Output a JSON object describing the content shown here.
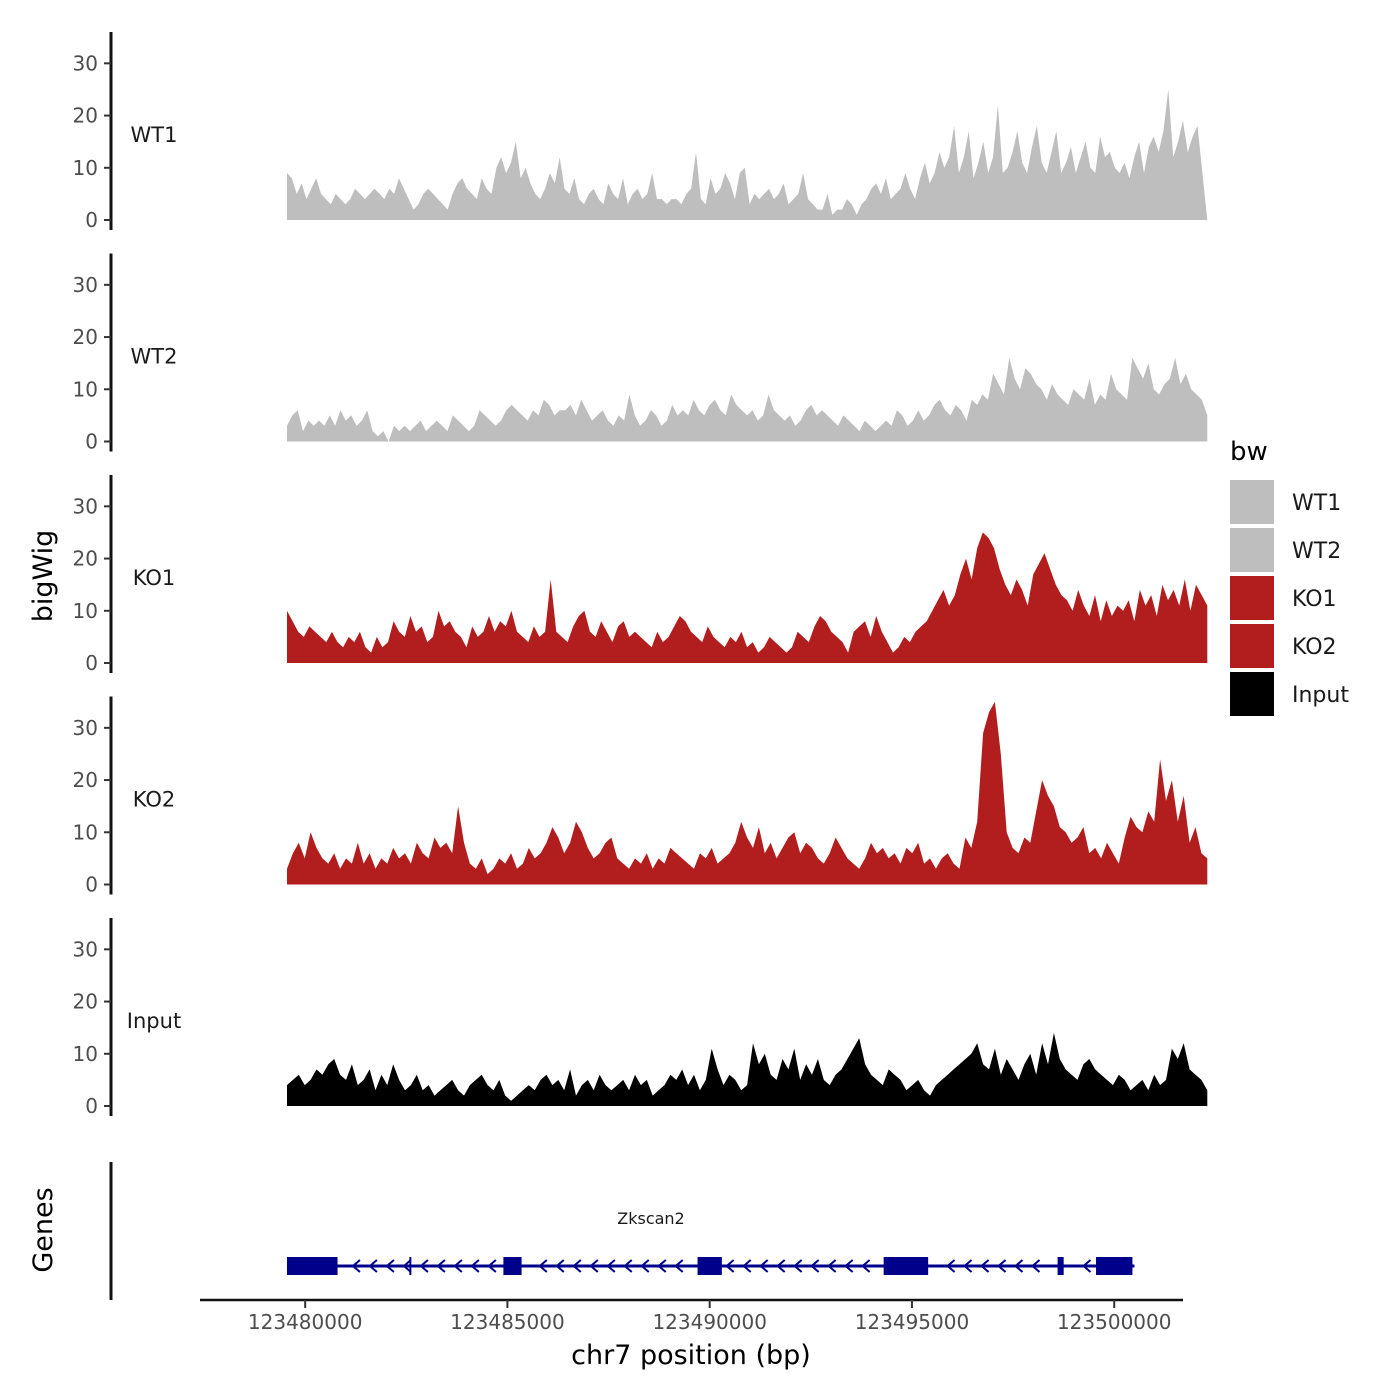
{
  "chart_data": {
    "type": "area",
    "ylabel": "bigWig",
    "xlabel": "chr7 position (bp)",
    "xlim": [
      123477400,
      123501700
    ],
    "ylim": [
      0,
      36
    ],
    "y_ticks": [
      "0",
      "10",
      "20",
      "30"
    ],
    "x_ticks": [
      {
        "value": 123480000,
        "label": "123480000"
      },
      {
        "value": 123485000,
        "label": "123485000"
      },
      {
        "value": 123490000,
        "label": "123490000"
      },
      {
        "value": 123495000,
        "label": "123495000"
      },
      {
        "value": 123500000,
        "label": "123500000"
      }
    ],
    "signal_range": [
      123479550,
      123502300
    ],
    "series": [
      {
        "name": "WT1",
        "color": "#BEBEBE",
        "values": [
          9,
          8,
          5,
          7,
          4,
          6,
          8,
          5,
          4,
          3,
          5,
          4,
          3,
          4,
          6,
          5,
          4,
          5,
          6,
          5,
          4,
          6,
          5,
          8,
          6,
          4,
          2,
          3,
          5,
          6,
          5,
          4,
          3,
          2,
          5,
          7,
          8,
          6,
          5,
          4,
          8,
          6,
          5,
          10,
          12,
          9,
          11,
          15,
          8,
          10,
          7,
          5,
          4,
          6,
          9,
          7,
          12,
          6,
          5,
          8,
          4,
          3,
          5,
          6,
          4,
          3,
          7,
          5,
          4,
          8,
          3,
          5,
          6,
          4,
          5,
          9,
          4,
          4,
          3,
          4,
          4,
          3,
          5,
          6,
          13,
          4,
          3,
          8,
          5,
          6,
          9,
          7,
          4,
          9,
          10,
          3,
          5,
          4,
          5,
          6,
          4,
          5,
          7,
          3,
          4,
          5,
          9,
          4,
          3,
          2,
          2,
          5,
          1,
          2,
          2,
          4,
          3,
          1,
          3,
          4,
          6,
          7,
          5,
          8,
          4,
          5,
          6,
          9,
          6,
          4,
          8,
          11,
          7,
          9,
          13,
          10,
          12,
          18,
          9,
          12,
          17,
          8,
          11,
          15,
          9,
          12,
          22,
          9,
          10,
          13,
          17,
          11,
          9,
          14,
          18,
          11,
          9,
          13,
          17,
          9,
          11,
          14,
          9,
          12,
          15,
          10,
          9,
          16,
          12,
          13,
          10,
          9,
          11,
          8,
          12,
          15,
          9,
          14,
          16,
          13,
          17,
          25,
          12,
          15,
          19,
          13,
          16,
          18,
          9,
          0
        ]
      },
      {
        "name": "WT2",
        "color": "#BEBEBE",
        "values": [
          3,
          5,
          6,
          2,
          4,
          3,
          4,
          3,
          5,
          3,
          6,
          4,
          5,
          3,
          4,
          6,
          2,
          1,
          2,
          0,
          3,
          2,
          3,
          2,
          3,
          4,
          2,
          3,
          4,
          3,
          2,
          5,
          4,
          3,
          2,
          3,
          6,
          5,
          4,
          3,
          4,
          6,
          7,
          6,
          5,
          4,
          6,
          5,
          8,
          7,
          5,
          6,
          6,
          7,
          5,
          8,
          6,
          4,
          5,
          6,
          4,
          3,
          5,
          4,
          9,
          5,
          3,
          4,
          6,
          5,
          3,
          4,
          7,
          5,
          6,
          5,
          8,
          6,
          5,
          7,
          8,
          6,
          5,
          9,
          7,
          6,
          5,
          6,
          4,
          5,
          9,
          6,
          5,
          4,
          5,
          3,
          4,
          6,
          7,
          5,
          6,
          5,
          4,
          3,
          5,
          4,
          3,
          2,
          4,
          3,
          2,
          3,
          4,
          3,
          6,
          5,
          3,
          4,
          6,
          4,
          5,
          7,
          8,
          6,
          5,
          7,
          6,
          4,
          8,
          7,
          9,
          8,
          13,
          11,
          9,
          16,
          12,
          10,
          14,
          13,
          11,
          10,
          8,
          11,
          9,
          8,
          7,
          10,
          9,
          8,
          12,
          7,
          9,
          8,
          13,
          10,
          9,
          8,
          16,
          14,
          12,
          15,
          10,
          9,
          11,
          12,
          16,
          11,
          13,
          10,
          9,
          8,
          5
        ]
      },
      {
        "name": "KO1",
        "color": "#B21E1E",
        "values": [
          10,
          8,
          6,
          5,
          7,
          6,
          5,
          4,
          6,
          4,
          3,
          5,
          4,
          6,
          3,
          2,
          5,
          3,
          4,
          8,
          6,
          5,
          9,
          6,
          7,
          4,
          5,
          10,
          7,
          8,
          6,
          5,
          3,
          7,
          5,
          6,
          9,
          6,
          8,
          7,
          10,
          6,
          5,
          4,
          7,
          5,
          6,
          16,
          6,
          5,
          4,
          7,
          9,
          10,
          6,
          5,
          8,
          6,
          4,
          7,
          8,
          5,
          6,
          5,
          4,
          3,
          6,
          4,
          5,
          7,
          9,
          8,
          6,
          5,
          4,
          7,
          5,
          4,
          3,
          5,
          4,
          6,
          3,
          4,
          2,
          3,
          5,
          4,
          3,
          2,
          3,
          6,
          5,
          4,
          7,
          9,
          8,
          6,
          5,
          4,
          2,
          6,
          7,
          8,
          5,
          9,
          6,
          4,
          2,
          3,
          5,
          4,
          6,
          7,
          8,
          10,
          12,
          14,
          11,
          13,
          17,
          20,
          16,
          22,
          25,
          24,
          22,
          18,
          15,
          13,
          16,
          14,
          11,
          17,
          19,
          21,
          18,
          15,
          13,
          12,
          10,
          14,
          11,
          9,
          13,
          8,
          12,
          9,
          11,
          10,
          12,
          8,
          14,
          11,
          13,
          9,
          15,
          12,
          14,
          11,
          16,
          10,
          15,
          13,
          11
        ]
      },
      {
        "name": "KO2",
        "color": "#B21E1E",
        "values": [
          3,
          6,
          8,
          5,
          10,
          7,
          5,
          4,
          6,
          3,
          5,
          4,
          8,
          4,
          6,
          3,
          5,
          4,
          7,
          5,
          6,
          4,
          8,
          6,
          5,
          9,
          7,
          8,
          6,
          15,
          8,
          4,
          3,
          5,
          2,
          3,
          5,
          4,
          6,
          3,
          4,
          7,
          5,
          6,
          8,
          11,
          9,
          6,
          8,
          12,
          10,
          7,
          5,
          6,
          8,
          9,
          5,
          4,
          3,
          5,
          4,
          6,
          3,
          5,
          4,
          7,
          6,
          5,
          4,
          3,
          6,
          5,
          7,
          4,
          5,
          6,
          8,
          12,
          9,
          7,
          11,
          6,
          8,
          5,
          7,
          9,
          10,
          6,
          8,
          7,
          5,
          4,
          6,
          9,
          7,
          5,
          4,
          3,
          5,
          8,
          6,
          7,
          5,
          6,
          4,
          7,
          6,
          8,
          4,
          5,
          3,
          5,
          6,
          4,
          3,
          9,
          7,
          12,
          29,
          33,
          35,
          25,
          10,
          7,
          6,
          9,
          8,
          14,
          20,
          17,
          15,
          11,
          10,
          8,
          9,
          11,
          6,
          7,
          5,
          8,
          6,
          4,
          9,
          13,
          11,
          10,
          14,
          12,
          24,
          16,
          20,
          12,
          17,
          8,
          11,
          6,
          5
        ]
      },
      {
        "name": "Input",
        "color": "#000000",
        "values": [
          4,
          5,
          6,
          4,
          5,
          7,
          6,
          8,
          9,
          6,
          5,
          8,
          4,
          5,
          7,
          3,
          6,
          4,
          8,
          5,
          3,
          4,
          6,
          3,
          4,
          2,
          3,
          4,
          5,
          3,
          2,
          4,
          5,
          6,
          4,
          3,
          5,
          2,
          1,
          2,
          3,
          4,
          3,
          5,
          6,
          4,
          5,
          3,
          7,
          2,
          4,
          5,
          3,
          6,
          4,
          3,
          4,
          5,
          3,
          6,
          4,
          5,
          2,
          3,
          4,
          6,
          5,
          7,
          4,
          6,
          3,
          5,
          11,
          7,
          4,
          6,
          5,
          3,
          4,
          12,
          8,
          10,
          6,
          5,
          9,
          7,
          11,
          5,
          8,
          6,
          9,
          5,
          4,
          6,
          7,
          9,
          11,
          13,
          8,
          6,
          5,
          4,
          7,
          6,
          5,
          3,
          4,
          5,
          3,
          2,
          4,
          5,
          6,
          7,
          8,
          9,
          10,
          12,
          8,
          7,
          11,
          6,
          9,
          7,
          5,
          8,
          10,
          6,
          12,
          8,
          14,
          9,
          7,
          6,
          5,
          8,
          9,
          7,
          6,
          5,
          4,
          6,
          5,
          3,
          4,
          5,
          3,
          6,
          4,
          5,
          11,
          9,
          12,
          7,
          6,
          5,
          3
        ]
      }
    ],
    "genes_label": "Genes",
    "gene": {
      "name": "Zkscan2",
      "color": "#00008B",
      "start": 123479550,
      "end": 123500500,
      "strand": "-",
      "exons": [
        [
          123479550,
          123480800
        ],
        [
          123484900,
          123485350
        ],
        [
          123489700,
          123490300
        ],
        [
          123494300,
          123495400
        ],
        [
          123498600,
          123498750
        ],
        [
          123499550,
          123500450
        ]
      ],
      "minor_ticks": [
        123482600
      ]
    },
    "legend": {
      "title": "bw",
      "items": [
        {
          "label": "WT1",
          "color": "#BEBEBE"
        },
        {
          "label": "WT2",
          "color": "#BEBEBE"
        },
        {
          "label": "KO1",
          "color": "#B21E1E"
        },
        {
          "label": "KO2",
          "color": "#B21E1E"
        },
        {
          "label": "Input",
          "color": "#000000"
        }
      ],
      "position": "right"
    }
  }
}
